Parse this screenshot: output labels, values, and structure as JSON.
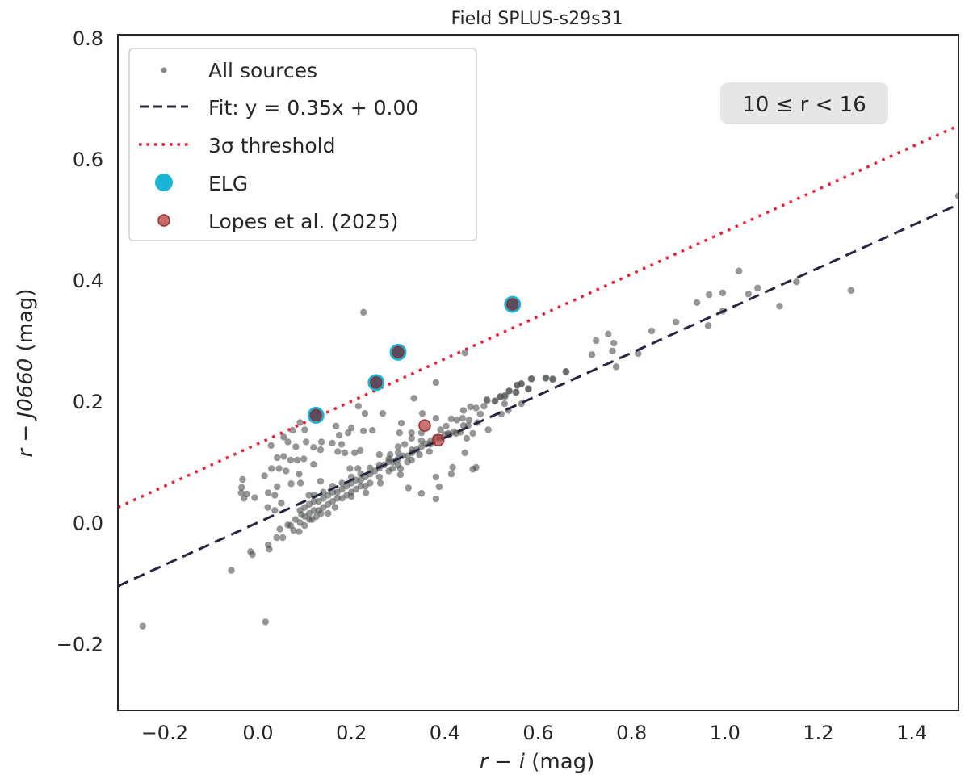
{
  "chart_data": {
    "type": "scatter",
    "title": "Field SPLUS-s29s31",
    "xlabel": {
      "var": "r − i",
      "unit": " (mag)"
    },
    "ylabel": {
      "var": "r − J0660",
      "unit": " (mag)"
    },
    "xlim": [
      -0.3,
      1.5
    ],
    "ylim": [
      -0.31,
      0.805
    ],
    "xticks": [
      -0.2,
      0.0,
      0.2,
      0.4,
      0.6,
      0.8,
      1.0,
      1.2,
      1.4
    ],
    "xtick_labels": [
      "−0.2",
      "0.0",
      "0.2",
      "0.4",
      "0.6",
      "0.8",
      "1.0",
      "1.2",
      "1.4"
    ],
    "yticks": [
      -0.2,
      0.0,
      0.2,
      0.4,
      0.6,
      0.8
    ],
    "ytick_labels": [
      "−0.2",
      "0.0",
      "0.2",
      "0.4",
      "0.6",
      "0.8"
    ],
    "grid": false,
    "legend_position": "top-left",
    "annotation": "10 ≤ r < 16",
    "colors": {
      "sources": "#4d524f",
      "fit": "#262640",
      "threshold": "#e8203a",
      "elg": "#1ab5d6",
      "lopes": "#b03a3a",
      "annotation_bg": "#e6e6e6"
    },
    "legend": [
      {
        "label": "All sources",
        "marker": "small-dot"
      },
      {
        "label": "Fit: y = 0.35x + 0.00",
        "marker": "dashed-line"
      },
      {
        "label": "3σ threshold",
        "marker": "dotted-line"
      },
      {
        "label": "ELG",
        "marker": "large-dot"
      },
      {
        "label": "Lopes et al. (2025)",
        "marker": "dot"
      }
    ],
    "fit": {
      "slope": 0.35,
      "intercept": 0.0
    },
    "threshold": {
      "slope": 0.35,
      "intercept": 0.13
    },
    "series": [
      {
        "name": "All sources",
        "points": [
          [
            -0.247,
            -0.171
          ],
          [
            0.016,
            -0.164
          ],
          [
            -0.057,
            -0.079
          ],
          [
            -0.035,
            0.058
          ],
          [
            -0.03,
            0.04
          ],
          [
            0.226,
            0.347
          ],
          [
            0.443,
            0.28
          ],
          [
            0.381,
            0.231
          ],
          [
            0.334,
            0.205
          ],
          [
            0.215,
            0.192
          ],
          [
            0.229,
            0.18
          ],
          [
            0.267,
            0.18
          ],
          [
            0.352,
            0.18
          ],
          [
            0.381,
            0.172
          ],
          [
            0.307,
            0.164
          ],
          [
            0.09,
            0.165
          ],
          [
            0.1,
            0.153
          ],
          [
            0.055,
            0.141
          ],
          [
            0.074,
            0.152
          ],
          [
            0.167,
            0.159
          ],
          [
            0.2,
            0.156
          ],
          [
            0.174,
            0.144
          ],
          [
            0.193,
            0.148
          ],
          [
            0.226,
            0.151
          ],
          [
            0.245,
            0.152
          ],
          [
            0.303,
            0.148
          ],
          [
            0.329,
            0.148
          ],
          [
            0.35,
            0.148
          ],
          [
            0.028,
            0.127
          ],
          [
            0.103,
            0.133
          ],
          [
            0.064,
            0.133
          ],
          [
            0.136,
            0.133
          ],
          [
            0.159,
            0.131
          ],
          [
            0.179,
            0.129
          ],
          [
            0.081,
            0.125
          ],
          [
            0.119,
            0.124
          ],
          [
            0.134,
            0.12
          ],
          [
            0.171,
            0.117
          ],
          [
            0.186,
            0.115
          ],
          [
            0.207,
            0.115
          ],
          [
            0.219,
            0.119
          ],
          [
            0.041,
            0.107
          ],
          [
            0.055,
            0.109
          ],
          [
            0.07,
            0.103
          ],
          [
            0.084,
            0.103
          ],
          [
            0.098,
            0.105
          ],
          [
            0.045,
            0.089
          ],
          [
            0.029,
            0.089
          ],
          [
            0.06,
            0.085
          ],
          [
            0.014,
            0.077
          ],
          [
            -0.033,
            0.071
          ],
          [
            0.088,
            0.08
          ],
          [
            0.119,
            0.096
          ],
          [
            0.134,
            0.068
          ],
          [
            0.091,
            0.065
          ],
          [
            0.071,
            0.064
          ],
          [
            0.041,
            0.059
          ],
          [
            0.022,
            0.049
          ],
          [
            -0.036,
            0.049
          ],
          [
            -0.024,
            0.047
          ],
          [
            -0.007,
            0.041
          ],
          [
            0.036,
            0.045
          ],
          [
            0.05,
            0.032
          ],
          [
            0.021,
            0.025
          ],
          [
            0.036,
            0.02
          ],
          [
            0.047,
            -0.011
          ],
          [
            0.04,
            -0.025
          ],
          [
            0.053,
            -0.025
          ],
          [
            0.022,
            -0.037
          ],
          [
            0.024,
            -0.044
          ],
          [
            -0.016,
            -0.048
          ],
          [
            -0.012,
            -0.053
          ],
          [
            0.064,
            -0.004
          ],
          [
            0.076,
            -0.013
          ],
          [
            0.088,
            -0.015
          ],
          [
            0.109,
            0.045
          ],
          [
            0.093,
            0.013
          ],
          [
            0.116,
            0.005
          ],
          [
            0.659,
            0.249
          ],
          [
            0.616,
            0.238
          ],
          [
            0.631,
            0.236
          ],
          [
            0.586,
            0.237
          ],
          [
            0.555,
            0.227
          ],
          [
            0.564,
            0.229
          ],
          [
            0.538,
            0.217
          ],
          [
            0.553,
            0.215
          ],
          [
            0.579,
            0.22
          ],
          [
            0.529,
            0.21
          ],
          [
            0.519,
            0.207
          ],
          [
            0.507,
            0.2
          ],
          [
            0.49,
            0.203
          ],
          [
            0.467,
            0.189
          ],
          [
            0.484,
            0.192
          ],
          [
            0.476,
            0.179
          ],
          [
            0.455,
            0.191
          ],
          [
            0.528,
            0.196
          ],
          [
            0.536,
            0.185
          ],
          [
            0.564,
            0.196
          ],
          [
            0.521,
            0.179
          ],
          [
            0.44,
            0.185
          ],
          [
            0.426,
            0.169
          ],
          [
            0.438,
            0.172
          ],
          [
            0.452,
            0.169
          ],
          [
            0.493,
            0.153
          ],
          [
            0.414,
            0.171
          ],
          [
            0.403,
            0.159
          ],
          [
            0.391,
            0.153
          ],
          [
            0.407,
            0.147
          ],
          [
            0.424,
            0.147
          ],
          [
            0.433,
            0.149
          ],
          [
            0.447,
            0.139
          ],
          [
            0.46,
            0.147
          ],
          [
            0.443,
            0.115
          ],
          [
            0.46,
            0.088
          ],
          [
            0.467,
            0.091
          ],
          [
            0.417,
            0.091
          ],
          [
            0.414,
            0.08
          ],
          [
            0.381,
            0.075
          ],
          [
            0.388,
            0.059
          ],
          [
            0.35,
            0.048
          ],
          [
            0.381,
            0.039
          ],
          [
            0.322,
            0.057
          ],
          [
            0.367,
            0.117
          ],
          [
            0.346,
            0.112
          ],
          [
            0.329,
            0.103
          ],
          [
            0.369,
            0.129
          ],
          [
            0.329,
            0.139
          ],
          [
            0.314,
            0.129
          ],
          [
            0.3,
            0.125
          ],
          [
            0.283,
            0.112
          ],
          [
            0.26,
            0.112
          ],
          [
            0.288,
            0.089
          ],
          [
            0.305,
            0.089
          ],
          [
            0.305,
            0.079
          ],
          [
            0.262,
            0.065
          ],
          [
            0.231,
            0.049
          ],
          [
            0.2,
            0.043
          ],
          [
            0.214,
            0.089
          ],
          [
            0.197,
            0.089
          ],
          [
            0.94,
            0.363
          ],
          [
            0.966,
            0.376
          ],
          [
            0.995,
            0.379
          ],
          [
            0.995,
            0.349
          ],
          [
            1.05,
            0.377
          ],
          [
            1.07,
            0.387
          ],
          [
            1.117,
            0.357
          ],
          [
            1.153,
            0.397
          ],
          [
            1.03,
            0.415
          ],
          [
            1.27,
            0.383
          ],
          [
            1.5,
            0.539
          ],
          [
            0.843,
            0.316
          ],
          [
            0.895,
            0.331
          ],
          [
            0.964,
            0.325
          ],
          [
            0.814,
            0.279
          ],
          [
            0.75,
            0.311
          ],
          [
            0.724,
            0.3
          ],
          [
            0.762,
            0.296
          ],
          [
            0.759,
            0.283
          ],
          [
            0.715,
            0.277
          ],
          [
            0.767,
            0.257
          ],
          [
            0.66,
            0.249
          ],
          [
            0.617,
            0.239
          ],
          [
            0.631,
            0.237
          ],
          [
            0.585,
            0.237
          ],
          [
            0.564,
            0.229
          ],
          [
            0.555,
            0.226
          ],
          [
            0.538,
            0.217
          ],
          [
            0.552,
            0.215
          ],
          [
            0.579,
            0.221
          ],
          [
            0.519,
            0.208
          ],
          [
            0.529,
            0.208
          ],
          [
            0.508,
            0.201
          ],
          [
            0.491,
            0.201
          ],
          [
            0.09,
            0.02
          ],
          [
            0.1,
            0.025
          ],
          [
            0.11,
            0.03
          ],
          [
            0.12,
            0.035
          ],
          [
            0.13,
            0.035
          ],
          [
            0.14,
            0.04
          ],
          [
            0.15,
            0.045
          ],
          [
            0.16,
            0.05
          ],
          [
            0.17,
            0.05
          ],
          [
            0.18,
            0.055
          ],
          [
            0.19,
            0.06
          ],
          [
            0.2,
            0.065
          ],
          [
            0.21,
            0.07
          ],
          [
            0.22,
            0.07
          ],
          [
            0.23,
            0.075
          ],
          [
            0.24,
            0.08
          ],
          [
            0.25,
            0.085
          ],
          [
            0.26,
            0.09
          ],
          [
            0.27,
            0.095
          ],
          [
            0.28,
            0.1
          ],
          [
            0.29,
            0.1
          ],
          [
            0.3,
            0.105
          ],
          [
            0.31,
            0.11
          ],
          [
            0.32,
            0.11
          ],
          [
            0.33,
            0.115
          ],
          [
            0.34,
            0.12
          ],
          [
            0.35,
            0.125
          ],
          [
            0.36,
            0.13
          ],
          [
            0.1,
            0.01
          ],
          [
            0.11,
            0.015
          ],
          [
            0.12,
            0.02
          ],
          [
            0.13,
            0.02
          ],
          [
            0.14,
            0.025
          ],
          [
            0.15,
            0.03
          ],
          [
            0.16,
            0.035
          ],
          [
            0.17,
            0.04
          ],
          [
            0.18,
            0.04
          ],
          [
            0.19,
            0.045
          ],
          [
            0.2,
            0.05
          ],
          [
            0.21,
            0.055
          ],
          [
            0.22,
            0.06
          ],
          [
            0.23,
            0.06
          ],
          [
            0.24,
            0.065
          ],
          [
            0.26,
            0.075
          ],
          [
            0.28,
            0.085
          ],
          [
            0.3,
            0.095
          ],
          [
            0.32,
            0.1
          ],
          [
            0.12,
            0.045
          ],
          [
            0.14,
            0.05
          ],
          [
            0.16,
            0.06
          ],
          [
            0.18,
            0.065
          ],
          [
            0.2,
            0.075
          ],
          [
            0.22,
            0.08
          ],
          [
            0.24,
            0.09
          ],
          [
            0.26,
            0.095
          ],
          [
            0.28,
            0.105
          ],
          [
            0.3,
            0.115
          ],
          [
            0.33,
            0.12
          ],
          [
            0.35,
            0.135
          ],
          [
            0.37,
            0.135
          ],
          [
            0.38,
            0.14
          ],
          [
            0.39,
            0.14
          ],
          [
            0.4,
            0.145
          ],
          [
            0.41,
            0.145
          ],
          [
            0.42,
            0.15
          ],
          [
            0.44,
            0.16
          ],
          [
            0.45,
            0.16
          ],
          [
            0.47,
            0.165
          ],
          [
            0.08,
            0.005
          ],
          [
            0.09,
            0.0
          ],
          [
            0.1,
            -0.005
          ],
          [
            0.07,
            -0.005
          ],
          [
            0.11,
            0.005
          ],
          [
            0.125,
            0.01
          ],
          [
            0.135,
            0.015
          ],
          [
            0.15,
            0.015
          ],
          [
            0.165,
            0.025
          ]
        ]
      },
      {
        "name": "ELG",
        "points": [
          [
            0.124,
            0.177
          ],
          [
            0.253,
            0.231
          ],
          [
            0.3,
            0.281
          ],
          [
            0.545,
            0.36
          ]
        ]
      },
      {
        "name": "Lopes et al. (2025)",
        "points": [
          [
            0.124,
            0.177
          ],
          [
            0.253,
            0.231
          ],
          [
            0.3,
            0.281
          ],
          [
            0.545,
            0.36
          ],
          [
            0.357,
            0.16
          ],
          [
            0.386,
            0.136
          ]
        ]
      }
    ]
  }
}
